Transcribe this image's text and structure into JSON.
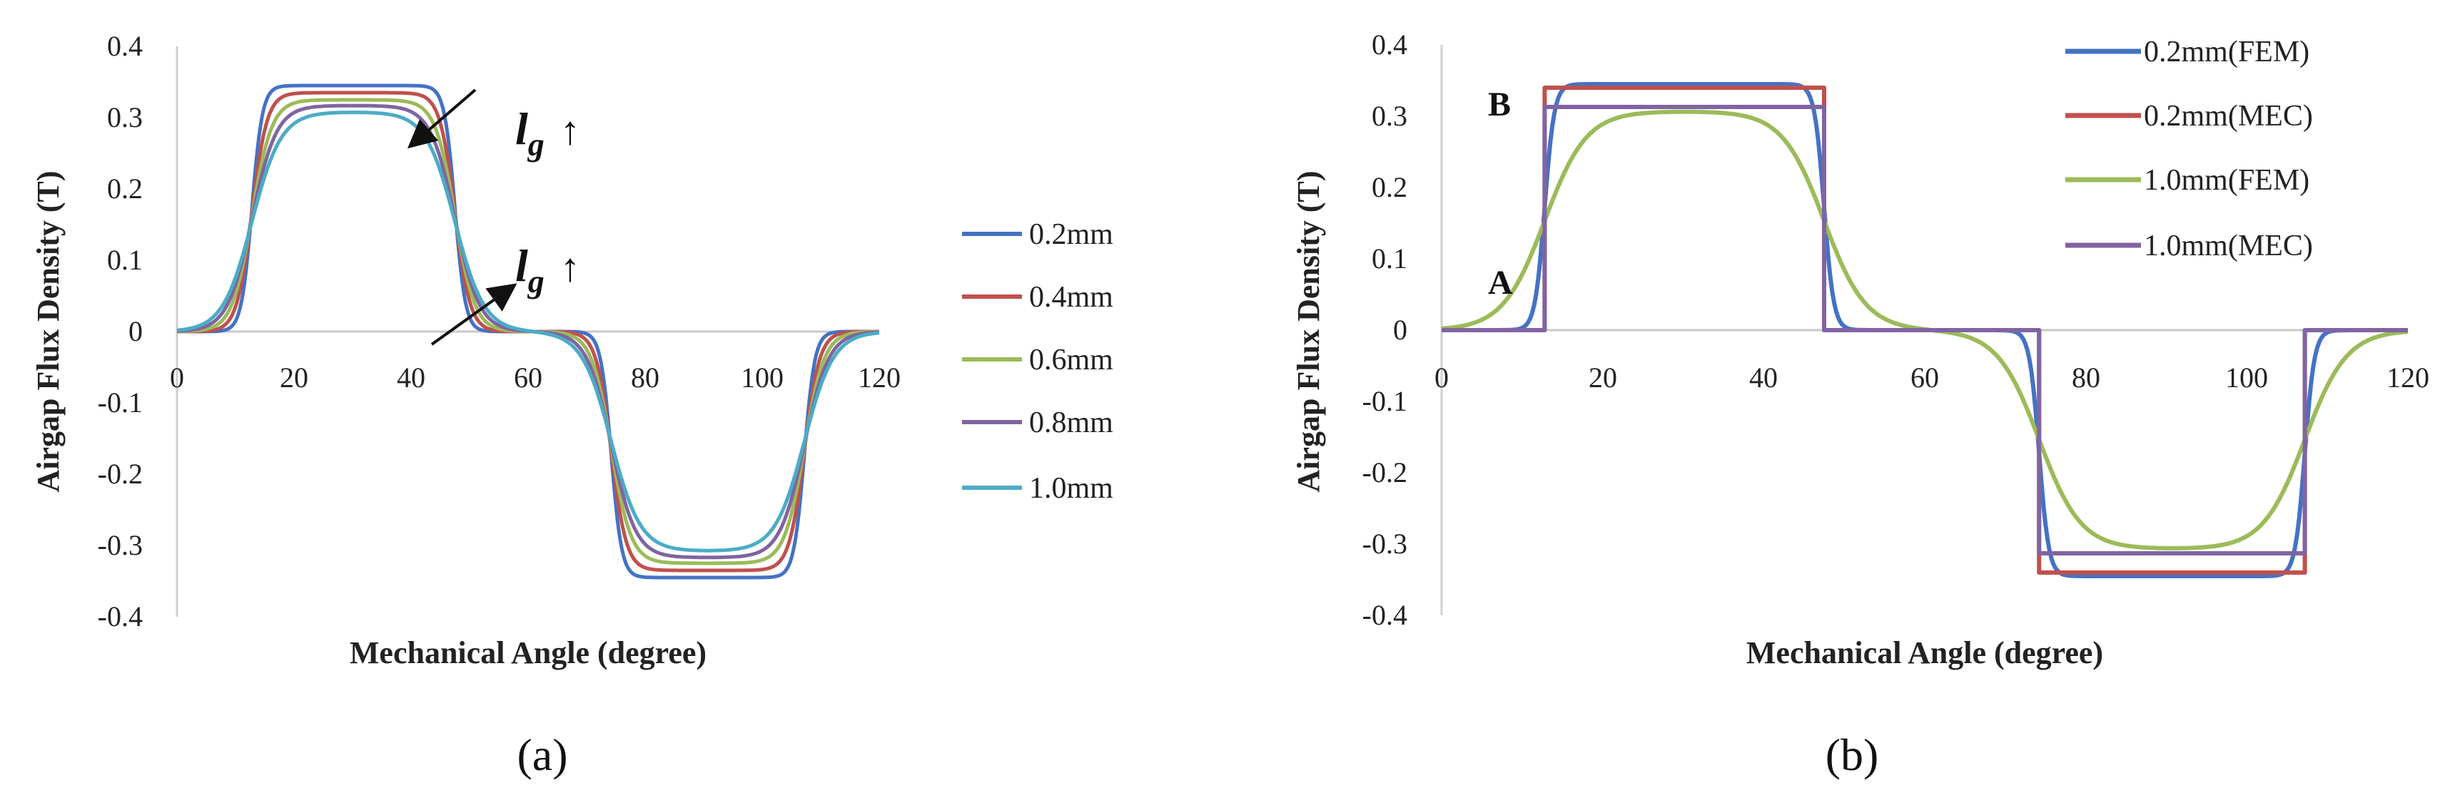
{
  "chart_data": [
    {
      "type": "line",
      "panel_label": "(a)",
      "xlabel": "Mechanical Angle (degree)",
      "ylabel": "Airgap Flux Density (T)",
      "xlim": [
        0,
        120
      ],
      "ylim": [
        -0.4,
        0.4
      ],
      "xticks": [
        0,
        20,
        40,
        60,
        80,
        100,
        120
      ],
      "yticks": [
        0.4,
        0.3,
        0.2,
        0.1,
        0,
        -0.1,
        -0.2,
        -0.3,
        -0.4
      ],
      "ytick_labels": [
        "0.4",
        "0.3",
        "0.2",
        "0.1",
        "0",
        "-0.1",
        "-0.2",
        "-0.3",
        "-0.4"
      ],
      "legend_position": "right",
      "annotation": {
        "main": "l",
        "sub": "g",
        "arrow": "↑"
      },
      "series": [
        {
          "name": "0.2mm",
          "color": "#4472c4",
          "plateau": 0.345,
          "softness": 0.9
        },
        {
          "name": "0.4mm",
          "color": "#c0504d",
          "plateau": 0.335,
          "softness": 1.3
        },
        {
          "name": "0.6mm",
          "color": "#9bbb59",
          "plateau": 0.325,
          "softness": 1.7
        },
        {
          "name": "0.8mm",
          "color": "#8064a2",
          "plateau": 0.317,
          "softness": 2.1
        },
        {
          "name": "1.0mm",
          "color": "#4bacc6",
          "plateau": 0.308,
          "softness": 2.5
        }
      ]
    },
    {
      "type": "line",
      "panel_label": "(b)",
      "xlabel": "Mechanical Angle (degree)",
      "ylabel": "Airgap Flux Density (T)",
      "xlim": [
        0,
        120
      ],
      "ylim": [
        -0.4,
        0.4
      ],
      "xticks": [
        0,
        20,
        40,
        60,
        80,
        100,
        120
      ],
      "yticks": [
        0.4,
        0.3,
        0.2,
        0.1,
        0,
        -0.1,
        -0.2,
        -0.3,
        -0.4
      ],
      "ytick_labels": [
        "0.4",
        "0.3",
        "0.2",
        "0.1",
        "0",
        "-0.1",
        "-0.2",
        "-0.3",
        "-0.4"
      ],
      "legend_position": "top-right",
      "point_labels": [
        "B",
        "A"
      ],
      "series": [
        {
          "name": "0.2mm(FEM)",
          "color": "#4472c4",
          "kind": "fem",
          "plateau": 0.345,
          "softness": 0.6
        },
        {
          "name": "0.2mm(MEC)",
          "color": "#c0504d",
          "kind": "mec",
          "plateau": 0.34,
          "edges": [
            12.8,
            47.5,
            74.2,
            107.2
          ]
        },
        {
          "name": "1.0mm(FEM)",
          "color": "#9bbb59",
          "kind": "fem",
          "plateau": 0.307,
          "softness": 2.6
        },
        {
          "name": "1.0mm(MEC)",
          "color": "#8064a2",
          "kind": "mec",
          "plateau": 0.313,
          "edges": [
            12.8,
            47.5,
            74.2,
            107.2
          ]
        }
      ]
    }
  ]
}
